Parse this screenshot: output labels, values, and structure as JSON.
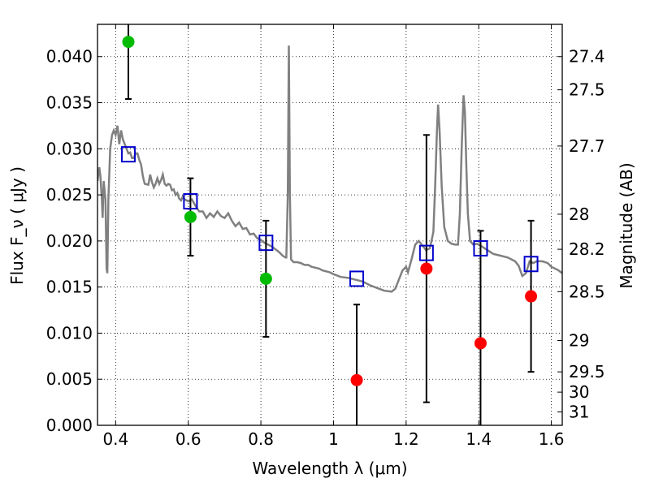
{
  "chart_data": {
    "type": "scatter",
    "xlabel": "Wavelength  λ (μm)",
    "ylabel": "Flux  F_ν  ( μJy )",
    "y2label": "Magnitude (AB)",
    "xlim": [
      0.35,
      1.63
    ],
    "ylim": [
      0.0,
      0.0435
    ],
    "grid": true,
    "x_ticks": [
      0.4,
      0.6,
      0.8,
      1.0,
      1.2,
      1.4,
      1.6
    ],
    "x_tick_labels": [
      "0.4",
      "0.6",
      "0.8",
      "1",
      "1.2",
      "1.4",
      "1.6"
    ],
    "y_ticks": [
      0.0,
      0.005,
      0.01,
      0.015,
      0.02,
      0.025,
      0.03,
      0.035,
      0.04
    ],
    "y_tick_labels": [
      "0.000",
      "0.005",
      "0.010",
      "0.015",
      "0.020",
      "0.025",
      "0.030",
      "0.035",
      "0.040"
    ],
    "y2_ticks": [
      {
        "label": "27.4",
        "flux": 0.04
      },
      {
        "label": "27.5",
        "flux": 0.0364
      },
      {
        "label": "27.7",
        "flux": 0.0303
      },
      {
        "label": "28",
        "flux": 0.0229
      },
      {
        "label": "28.2",
        "flux": 0.0191
      },
      {
        "label": "28.5",
        "flux": 0.0145
      },
      {
        "label": "29",
        "flux": 0.0092
      },
      {
        "label": "29.5",
        "flux": 0.0058
      },
      {
        "label": "30",
        "flux": 0.0036
      },
      {
        "label": "31",
        "flux": 0.00145
      }
    ],
    "series": [
      {
        "marker": "circle",
        "color": "#00bb00",
        "points": [
          {
            "x": 0.435,
            "y": 0.0416,
            "err_low": 0.0062,
            "err_high": 0.0062
          },
          {
            "x": 0.606,
            "y": 0.0226,
            "err_low": 0.0042,
            "err_high": 0.0042
          },
          {
            "x": 0.814,
            "y": 0.0159,
            "err_low": 0.0063,
            "err_high": 0.0063
          }
        ]
      },
      {
        "marker": "circle",
        "color": "#ff0000",
        "points": [
          {
            "x": 1.064,
            "y": 0.0049,
            "err_low": 0.0082,
            "err_high": 0.0082
          },
          {
            "x": 1.256,
            "y": 0.017,
            "err_low": 0.0145,
            "err_high": 0.0145
          },
          {
            "x": 1.405,
            "y": 0.0089,
            "err_low": 0.0122,
            "err_high": 0.0122
          },
          {
            "x": 1.544,
            "y": 0.014,
            "err_low": 0.0082,
            "err_high": 0.0082
          }
        ]
      },
      {
        "marker": "open-square",
        "color": "#0000cc",
        "points": [
          {
            "x": 0.435,
            "y": 0.0294
          },
          {
            "x": 0.606,
            "y": 0.0243
          },
          {
            "x": 0.814,
            "y": 0.0198
          },
          {
            "x": 1.064,
            "y": 0.0159
          },
          {
            "x": 1.256,
            "y": 0.0187
          },
          {
            "x": 1.405,
            "y": 0.0192
          },
          {
            "x": 1.544,
            "y": 0.0175
          }
        ]
      },
      {
        "marker": "line",
        "color": "#808080",
        "points": [
          [
            0.35,
            0.0265
          ],
          [
            0.355,
            0.028
          ],
          [
            0.358,
            0.027
          ],
          [
            0.362,
            0.0245
          ],
          [
            0.364,
            0.0225
          ],
          [
            0.367,
            0.0265
          ],
          [
            0.372,
            0.0245
          ],
          [
            0.375,
            0.017
          ],
          [
            0.377,
            0.0165
          ],
          [
            0.38,
            0.0245
          ],
          [
            0.385,
            0.03
          ],
          [
            0.39,
            0.0315
          ],
          [
            0.395,
            0.032
          ],
          [
            0.4,
            0.0315
          ],
          [
            0.405,
            0.0325
          ],
          [
            0.41,
            0.0305
          ],
          [
            0.415,
            0.032
          ],
          [
            0.42,
            0.031
          ],
          [
            0.425,
            0.0305
          ],
          [
            0.43,
            0.03
          ],
          [
            0.435,
            0.0295
          ],
          [
            0.44,
            0.0296
          ],
          [
            0.445,
            0.029
          ],
          [
            0.45,
            0.029
          ],
          [
            0.455,
            0.0295
          ],
          [
            0.46,
            0.0295
          ],
          [
            0.465,
            0.0288
          ],
          [
            0.47,
            0.0283
          ],
          [
            0.475,
            0.027
          ],
          [
            0.48,
            0.0262
          ],
          [
            0.49,
            0.0261
          ],
          [
            0.495,
            0.0272
          ],
          [
            0.5,
            0.0264
          ],
          [
            0.505,
            0.0258
          ],
          [
            0.51,
            0.0262
          ],
          [
            0.515,
            0.0268
          ],
          [
            0.52,
            0.0262
          ],
          [
            0.525,
            0.0266
          ],
          [
            0.53,
            0.0272
          ],
          [
            0.535,
            0.0262
          ],
          [
            0.54,
            0.026
          ],
          [
            0.545,
            0.0262
          ],
          [
            0.55,
            0.0261
          ],
          [
            0.555,
            0.0255
          ],
          [
            0.56,
            0.0256
          ],
          [
            0.565,
            0.025
          ],
          [
            0.57,
            0.0252
          ],
          [
            0.575,
            0.0246
          ],
          [
            0.58,
            0.0244
          ],
          [
            0.585,
            0.0248
          ],
          [
            0.59,
            0.0245
          ],
          [
            0.6,
            0.0243
          ],
          [
            0.61,
            0.0245
          ],
          [
            0.62,
            0.0238
          ],
          [
            0.63,
            0.0232
          ],
          [
            0.64,
            0.0232
          ],
          [
            0.65,
            0.0225
          ],
          [
            0.66,
            0.023
          ],
          [
            0.67,
            0.0226
          ],
          [
            0.68,
            0.0232
          ],
          [
            0.69,
            0.0227
          ],
          [
            0.7,
            0.0225
          ],
          [
            0.71,
            0.023
          ],
          [
            0.72,
            0.0222
          ],
          [
            0.73,
            0.0216
          ],
          [
            0.74,
            0.022
          ],
          [
            0.75,
            0.0213
          ],
          [
            0.76,
            0.0214
          ],
          [
            0.77,
            0.0207
          ],
          [
            0.78,
            0.0208
          ],
          [
            0.79,
            0.0203
          ],
          [
            0.8,
            0.0201
          ],
          [
            0.81,
            0.0198
          ],
          [
            0.82,
            0.0196
          ],
          [
            0.83,
            0.0194
          ],
          [
            0.84,
            0.0191
          ],
          [
            0.85,
            0.0188
          ],
          [
            0.86,
            0.0184
          ],
          [
            0.868,
            0.0182
          ],
          [
            0.87,
            0.0182
          ],
          [
            0.874,
            0.025
          ],
          [
            0.877,
            0.0412
          ],
          [
            0.88,
            0.025
          ],
          [
            0.883,
            0.018
          ],
          [
            0.89,
            0.0177
          ],
          [
            0.9,
            0.0177
          ],
          [
            0.91,
            0.0176
          ],
          [
            0.92,
            0.0174
          ],
          [
            0.93,
            0.0174
          ],
          [
            0.94,
            0.0172
          ],
          [
            0.95,
            0.0171
          ],
          [
            0.96,
            0.017
          ],
          [
            0.97,
            0.0168
          ],
          [
            0.98,
            0.0167
          ],
          [
            0.99,
            0.0166
          ],
          [
            1.0,
            0.0164
          ],
          [
            1.02,
            0.0161
          ],
          [
            1.04,
            0.016
          ],
          [
            1.06,
            0.0158
          ],
          [
            1.08,
            0.0156
          ],
          [
            1.1,
            0.0152
          ],
          [
            1.12,
            0.0149
          ],
          [
            1.14,
            0.0146
          ],
          [
            1.16,
            0.0145
          ],
          [
            1.17,
            0.0148
          ],
          [
            1.18,
            0.0158
          ],
          [
            1.19,
            0.0168
          ],
          [
            1.2,
            0.0172
          ],
          [
            1.205,
            0.0166
          ],
          [
            1.215,
            0.018
          ],
          [
            1.225,
            0.0196
          ],
          [
            1.235,
            0.02
          ],
          [
            1.245,
            0.0195
          ],
          [
            1.255,
            0.019
          ],
          [
            1.265,
            0.0192
          ],
          [
            1.27,
            0.02
          ],
          [
            1.275,
            0.021
          ],
          [
            1.28,
            0.026
          ],
          [
            1.285,
            0.032
          ],
          [
            1.288,
            0.0348
          ],
          [
            1.292,
            0.032
          ],
          [
            1.298,
            0.026
          ],
          [
            1.305,
            0.0215
          ],
          [
            1.315,
            0.02
          ],
          [
            1.325,
            0.0197
          ],
          [
            1.335,
            0.0196
          ],
          [
            1.343,
            0.0196
          ],
          [
            1.348,
            0.023
          ],
          [
            1.353,
            0.03
          ],
          [
            1.358,
            0.0358
          ],
          [
            1.362,
            0.034
          ],
          [
            1.366,
            0.028
          ],
          [
            1.37,
            0.023
          ],
          [
            1.376,
            0.02
          ],
          [
            1.385,
            0.0196
          ],
          [
            1.395,
            0.0197
          ],
          [
            1.405,
            0.0195
          ],
          [
            1.42,
            0.0191
          ],
          [
            1.44,
            0.0186
          ],
          [
            1.46,
            0.0184
          ],
          [
            1.48,
            0.0182
          ],
          [
            1.5,
            0.0178
          ],
          [
            1.51,
            0.0173
          ],
          [
            1.52,
            0.0162
          ],
          [
            1.53,
            0.0165
          ],
          [
            1.54,
            0.0178
          ],
          [
            1.55,
            0.0176
          ],
          [
            1.56,
            0.0178
          ],
          [
            1.575,
            0.0178
          ],
          [
            1.59,
            0.0176
          ],
          [
            1.6,
            0.0172
          ],
          [
            1.61,
            0.017
          ],
          [
            1.62,
            0.0168
          ],
          [
            1.63,
            0.0165
          ]
        ]
      }
    ]
  }
}
